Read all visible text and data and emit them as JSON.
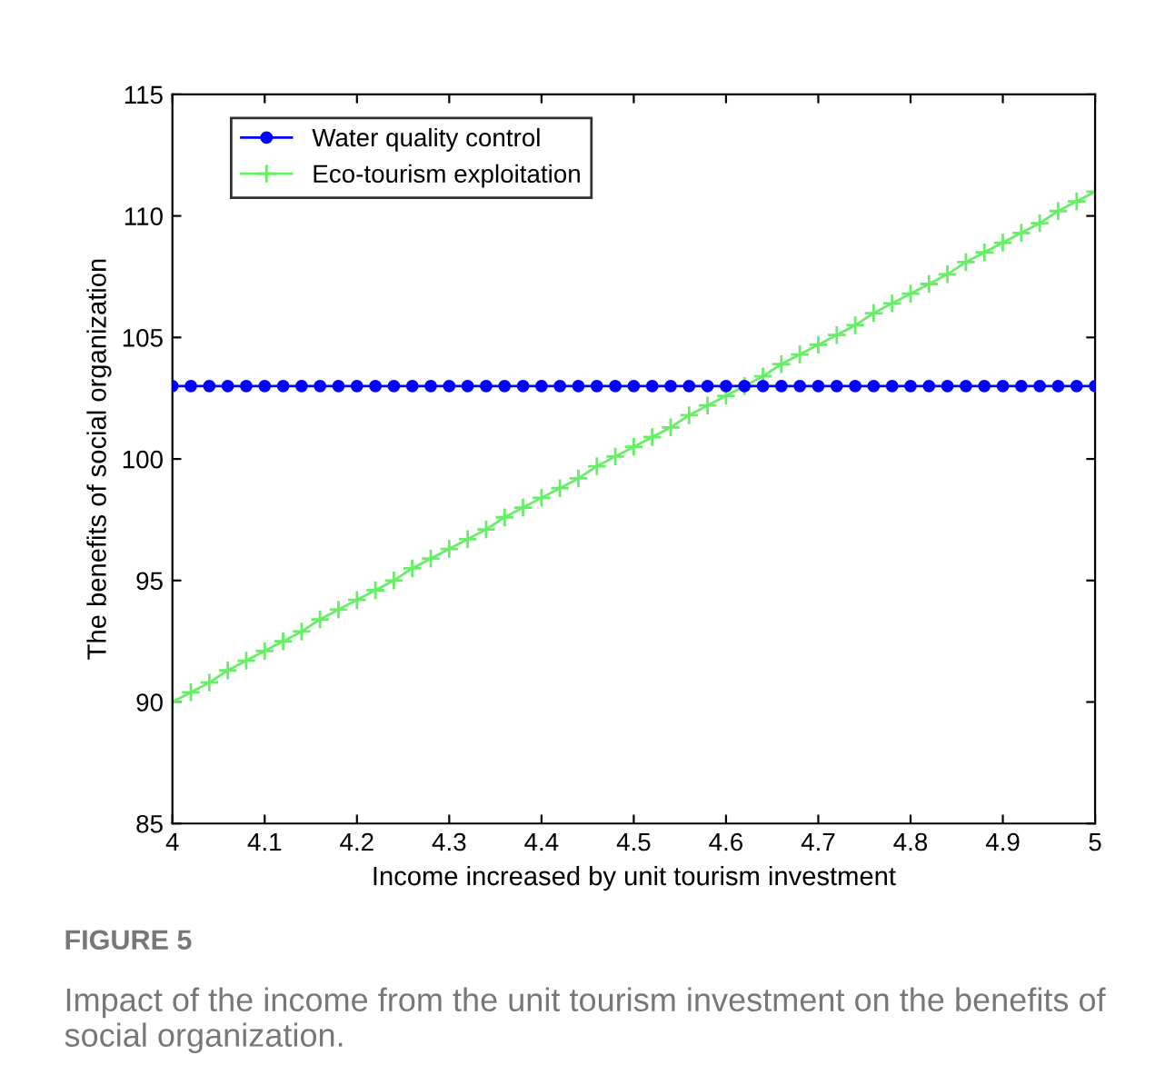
{
  "chart_data": {
    "type": "line",
    "xlabel": "Income increased by unit tourism investment",
    "ylabel": "The benefits of social organization",
    "x": [
      4.0,
      4.02,
      4.04,
      4.06,
      4.08,
      4.1,
      4.12,
      4.14,
      4.16,
      4.18,
      4.2,
      4.22,
      4.24,
      4.26,
      4.28,
      4.3,
      4.32,
      4.34,
      4.36,
      4.38,
      4.4,
      4.42,
      4.44,
      4.46,
      4.48,
      4.5,
      4.52,
      4.54,
      4.56,
      4.58,
      4.6,
      4.62,
      4.64,
      4.66,
      4.68,
      4.7,
      4.72,
      4.74,
      4.76,
      4.78,
      4.8,
      4.82,
      4.84,
      4.86,
      4.88,
      4.9,
      4.92,
      4.94,
      4.96,
      4.98,
      5.0
    ],
    "series": [
      {
        "name": "Water quality control",
        "color": "#0000ff",
        "marker": "circle",
        "values": [
          103,
          103,
          103,
          103,
          103,
          103,
          103,
          103,
          103,
          103,
          103,
          103,
          103,
          103,
          103,
          103,
          103,
          103,
          103,
          103,
          103,
          103,
          103,
          103,
          103,
          103,
          103,
          103,
          103,
          103,
          103,
          103,
          103,
          103,
          103,
          103,
          103,
          103,
          103,
          103,
          103,
          103,
          103,
          103,
          103,
          103,
          103,
          103,
          103,
          103,
          103
        ]
      },
      {
        "name": "Eco-tourism exploitation",
        "color": "#66ee66",
        "marker": "cross",
        "values": [
          90.0,
          90.4,
          90.8,
          91.3,
          91.7,
          92.1,
          92.5,
          92.9,
          93.4,
          93.8,
          94.2,
          94.6,
          95.0,
          95.5,
          95.9,
          96.3,
          96.7,
          97.1,
          97.6,
          98.0,
          98.4,
          98.8,
          99.2,
          99.7,
          100.1,
          100.5,
          100.9,
          101.3,
          101.8,
          102.2,
          102.6,
          103.0,
          103.4,
          103.9,
          104.3,
          104.7,
          105.1,
          105.5,
          106.0,
          106.4,
          106.8,
          107.2,
          107.6,
          108.1,
          108.5,
          108.9,
          109.3,
          109.7,
          110.2,
          110.6,
          111.0
        ]
      }
    ],
    "xlim": [
      4,
      5
    ],
    "xticks": [
      4,
      4.1,
      4.2,
      4.3,
      4.4,
      4.5,
      4.6,
      4.7,
      4.8,
      4.9,
      5
    ],
    "ylim": [
      85,
      115
    ],
    "yticks": [
      85,
      90,
      95,
      100,
      105,
      110,
      115
    ],
    "grid": false,
    "legend": "top left",
    "line_style": "solid",
    "annotations": [
      "FIGURE 5",
      "Impact of the income from the unit tourism investment on the benefits of social organization."
    ]
  }
}
